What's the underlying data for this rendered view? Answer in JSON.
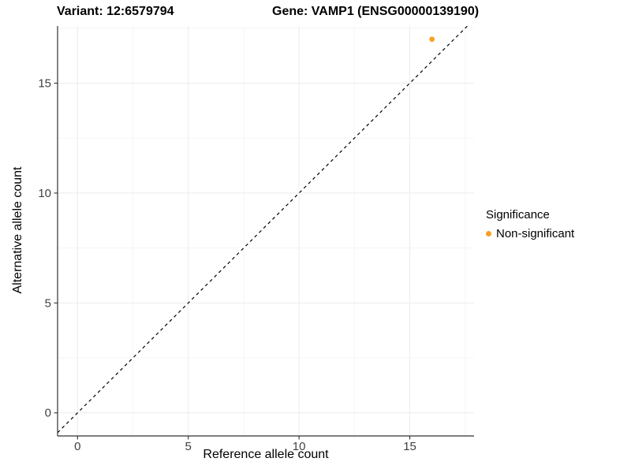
{
  "titles": {
    "variant": "Variant: 12:6579794",
    "gene": "Gene: VAMP1 (ENSG00000139190)"
  },
  "chart_data": {
    "type": "scatter",
    "title_left": "Variant: 12:6579794",
    "title_right": "Gene: VAMP1 (ENSG00000139190)",
    "xlabel": "Reference allele count",
    "ylabel": "Alternative allele count",
    "x_ticks": [
      0,
      5,
      10,
      15
    ],
    "y_ticks": [
      0,
      5,
      10,
      15
    ],
    "x_minor": [
      2.5,
      7.5,
      12.5,
      17.5
    ],
    "y_minor": [
      2.5,
      7.5,
      12.5,
      17.5
    ],
    "xlim": [
      -0.9,
      17.9
    ],
    "ylim": [
      -1.05,
      17.6
    ],
    "grid": true,
    "legend_position": "right",
    "points": [
      {
        "x": 16,
        "y": 17,
        "series": "Non-significant"
      }
    ],
    "reference_line": {
      "kind": "abline",
      "slope": 1,
      "intercept": 0,
      "style": "dashed",
      "color": "#000000"
    },
    "legend": {
      "title": "Significance",
      "items": [
        {
          "label": "Non-significant",
          "color": "#F7A024"
        }
      ]
    }
  },
  "colors": {
    "point": "#F7A024",
    "axis": "#333333",
    "grid_major": "#EBEBEB",
    "grid_minor": "#F5F5F5",
    "tick_label": "#404040",
    "reference_line": "#000000"
  }
}
